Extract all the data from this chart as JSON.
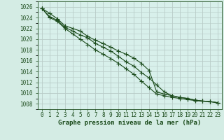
{
  "title": "Graphe pression niveau de la mer (hPa)",
  "bg_color": "#d4ece4",
  "plot_bg_color": "#d8f0eb",
  "grid_color": "#b8ccc8",
  "line_color": "#1a4a1a",
  "x_labels": [
    "0",
    "1",
    "2",
    "3",
    "4",
    "5",
    "6",
    "7",
    "8",
    "9",
    "10",
    "11",
    "12",
    "13",
    "14",
    "15",
    "16",
    "17",
    "18",
    "19",
    "20",
    "21",
    "22",
    "23"
  ],
  "ylim": [
    1007,
    1027
  ],
  "yticks": [
    1008,
    1010,
    1012,
    1014,
    1016,
    1018,
    1020,
    1022,
    1024,
    1026
  ],
  "series": [
    [
      1025.7,
      1024.8,
      1023.8,
      1022.5,
      1022.0,
      1021.5,
      1020.5,
      1019.8,
      1019.2,
      1018.5,
      1017.8,
      1017.2,
      1016.5,
      1015.5,
      1014.2,
      1010.2,
      1009.8,
      1009.5,
      1009.2,
      1009.0,
      1008.7,
      1008.5,
      1008.4,
      1008.2
    ],
    [
      1025.7,
      1024.2,
      1023.5,
      1022.2,
      1021.5,
      1020.8,
      1020.2,
      1019.2,
      1018.5,
      1017.8,
      1016.8,
      1015.8,
      1015.0,
      1013.8,
      1012.8,
      1011.5,
      1010.2,
      1009.5,
      1009.2,
      1009.0,
      1008.7,
      1008.5,
      1008.4,
      1008.2
    ],
    [
      1025.7,
      1024.0,
      1023.3,
      1022.0,
      1021.0,
      1020.0,
      1019.0,
      1018.0,
      1017.2,
      1016.4,
      1015.5,
      1014.5,
      1013.5,
      1012.2,
      1011.0,
      1009.8,
      1009.5,
      1009.2,
      1009.0,
      1008.8,
      1008.6,
      1008.5,
      1008.4,
      1008.2
    ]
  ],
  "marker": "+",
  "markersize": 4,
  "linewidth": 0.8,
  "tick_fontsize": 5.5,
  "label_fontsize": 6.5
}
